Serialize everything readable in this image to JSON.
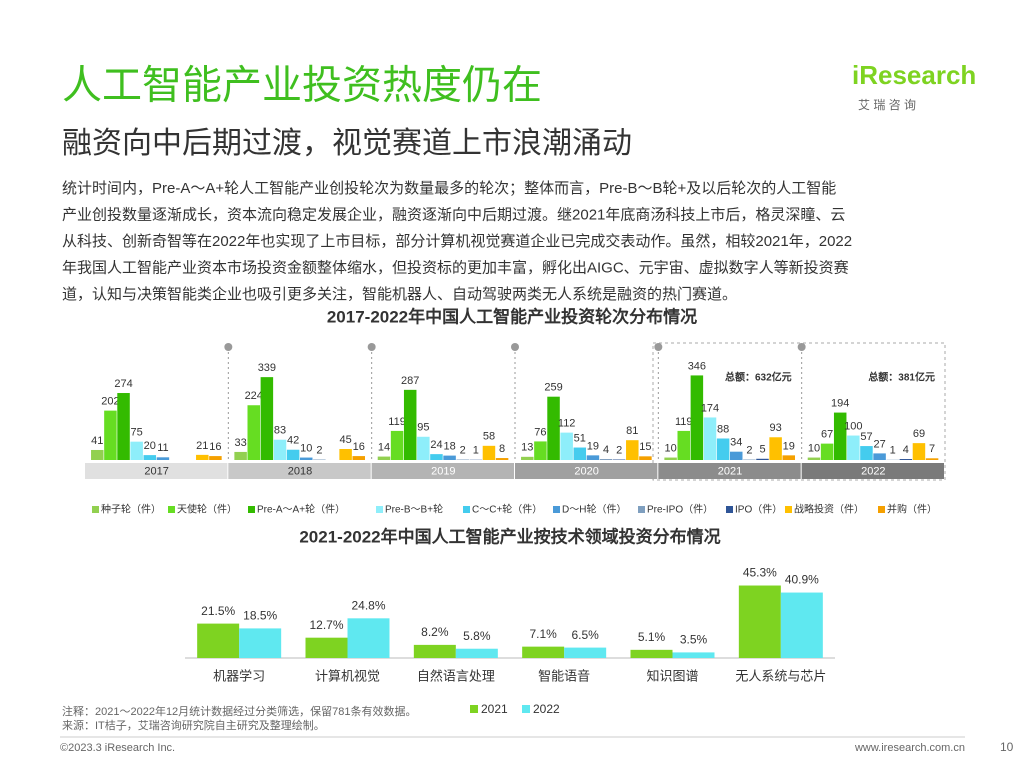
{
  "header": {
    "title": "人工智能产业投资热度仍在",
    "subtitle": "融资向中后期过渡，视觉赛道上市浪潮涌动",
    "logo": "iResearch",
    "logo_sub": "艾 瑞 咨 询"
  },
  "paragraph": [
    "统计时间内，Pre-A～A+轮人工智能产业创投轮次为数量最多的轮次；整体而言，Pre-B～B轮+及以后轮次的人工智能",
    "产业创投数量逐渐成长，资本流向稳定发展企业，融资逐渐向中后期过渡。继2021年底商汤科技上市后，格灵深瞳、云",
    "从科技、创新奇智等在2022年也实现了上市目标，部分计算机视觉赛道企业已完成交表动作。虽然，相较2021年，2022",
    "年我国人工智能产业资本市场投资金额整体缩水，但投资标的更加丰富，孵化出AIGC、元宇宙、虚拟数字人等新投资赛",
    "道，认知与决策智能类企业也吸引更多关注，智能机器人、自动驾驶两类无人系统是融资的热门赛道。"
  ],
  "chart_data": [
    {
      "type": "bar",
      "title": "2017-2022年中国人工智能产业投资轮次分布情况",
      "categories": [
        "2017",
        "2018",
        "2019",
        "2020",
        "2021",
        "2022"
      ],
      "series": [
        {
          "name": "种子轮（件）",
          "color": "#92d050",
          "values": [
            41,
            33,
            14,
            13,
            10,
            10
          ]
        },
        {
          "name": "天使轮（件）",
          "color": "#66dd22",
          "values": [
            202,
            224,
            119,
            76,
            119,
            67
          ]
        },
        {
          "name": "Pre-A～A+轮（件）",
          "color": "#33bb00",
          "values": [
            274,
            339,
            287,
            259,
            346,
            194
          ]
        },
        {
          "name": "Pre-B～B+轮",
          "color": "#8eeefa",
          "values": [
            75,
            83,
            95,
            112,
            174,
            100
          ]
        },
        {
          "name": "C～C+轮（件）",
          "color": "#44ccee",
          "values": [
            20,
            42,
            24,
            51,
            88,
            57
          ]
        },
        {
          "name": "D～H轮（件）",
          "color": "#4a9ad8",
          "values": [
            11,
            10,
            18,
            19,
            34,
            27
          ]
        },
        {
          "name": "Pre-IPO（件）",
          "color": "#7f9fbf",
          "values": [
            null,
            2,
            2,
            4,
            2,
            1
          ]
        },
        {
          "name": "IPO（件）",
          "color": "#2f5597",
          "values": [
            null,
            null,
            1,
            2,
            5,
            4
          ]
        },
        {
          "name": "战略投资（件）",
          "color": "#ffc000",
          "values": [
            21,
            45,
            58,
            81,
            93,
            69
          ]
        },
        {
          "name": "并购（件）",
          "color": "#f5a000",
          "values": [
            16,
            16,
            8,
            15,
            19,
            7
          ]
        }
      ],
      "annotations": [
        "总额：632亿元",
        "总额：381亿元"
      ],
      "ylim": [
        0,
        360
      ]
    },
    {
      "type": "bar",
      "title": "2021-2022年中国人工智能产业按技术领域投资分布情况",
      "categories": [
        "机器学习",
        "计算机视觉",
        "自然语言处理",
        "智能语音",
        "知识图谱",
        "无人系统与芯片"
      ],
      "series": [
        {
          "name": "2021",
          "color": "#7ed321",
          "values": [
            21.5,
            12.7,
            8.2,
            7.1,
            5.1,
            45.3
          ],
          "value_labels": [
            "21.5%",
            "12.7%",
            "8.2%",
            "7.1%",
            "5.1%",
            "45.3%"
          ]
        },
        {
          "name": "2022",
          "color": "#5fe8f0",
          "values": [
            18.5,
            24.8,
            5.8,
            6.5,
            3.5,
            40.9
          ],
          "value_labels": [
            "18.5%",
            "24.8%",
            "5.8%",
            "6.5%",
            "3.5%",
            "40.9%"
          ]
        }
      ],
      "ylim": [
        0,
        50
      ]
    }
  ],
  "notes": [
    "注释：2021～2022年12月统计数据经过分类筛选，保留781条有效数据。",
    "来源：IT桔子，艾瑞咨询研究院自主研究及整理绘制。"
  ],
  "footer": {
    "copyright": "©2023.3 iResearch Inc.",
    "website": "www.iresearch.com.cn",
    "page": "10"
  }
}
